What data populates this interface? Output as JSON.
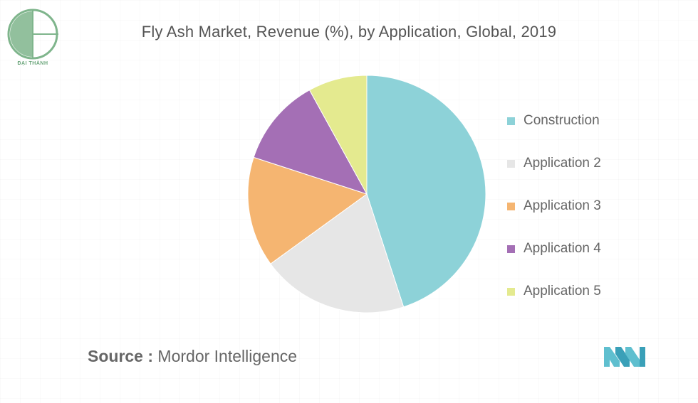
{
  "title": "Fly Ash Market, Revenue (%), by Application, Global, 2019",
  "logo": {
    "text": "ĐẠI THÀNH",
    "color": "#7fb58c"
  },
  "source": {
    "key": "Source :",
    "value": "Mordor Intelligence"
  },
  "colors": {
    "construction": "#8dd2d8",
    "application2": "#e6e6e6",
    "application3": "#f5b571",
    "application4": "#a46fb5",
    "application5": "#e4ea8f",
    "mi_logo": "#5fbfcf"
  },
  "chart_data": {
    "type": "pie",
    "title": "Fly Ash Market, Revenue (%), by Application, Global, 2019",
    "legend_position": "right",
    "slices": [
      {
        "label": "Construction",
        "value": 45,
        "color": "#8dd2d8"
      },
      {
        "label": "Application 2",
        "value": 20,
        "color": "#e6e6e6"
      },
      {
        "label": "Application 3",
        "value": 15,
        "color": "#f5b571"
      },
      {
        "label": "Application 4",
        "value": 12,
        "color": "#a46fb5"
      },
      {
        "label": "Application 5",
        "value": 8,
        "color": "#e4ea8f"
      }
    ]
  }
}
